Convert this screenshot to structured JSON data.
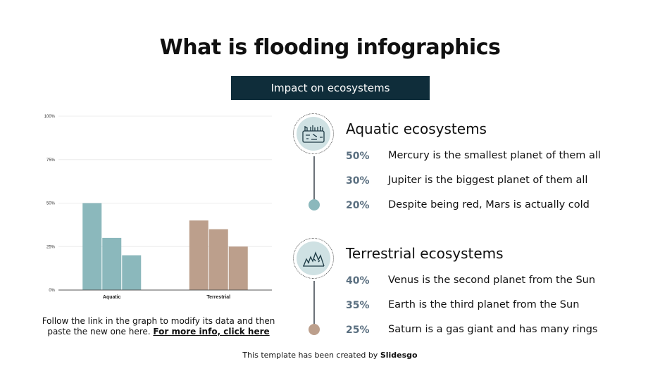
{
  "title": "What is flooding infographics",
  "subtitle": "Impact on ecosystems",
  "chart_data": {
    "type": "bar",
    "categories": [
      "Aquatic",
      "Terrestrial"
    ],
    "series": [
      {
        "values": [
          50,
          40
        ]
      },
      {
        "values": [
          30,
          35
        ]
      },
      {
        "values": [
          20,
          25
        ]
      }
    ],
    "category_colors": {
      "Aquatic": "#8bb8bc",
      "Terrestrial": "#bc9f8c"
    },
    "ylim": [
      0,
      100
    ],
    "yticks": [
      "0%",
      "25%",
      "50%",
      "75%",
      "100%"
    ],
    "grid": true
  },
  "note": {
    "text": "Follow the link in the graph to modify its data and then paste the new one here. ",
    "link": "For more info, click here"
  },
  "sections": [
    {
      "heading": "Aquatic ecosystems",
      "icon": "aquatic-landscape-icon",
      "color": "#8bb8bc",
      "items": [
        {
          "pct": "50%",
          "text": "Mercury is the smallest planet of them all"
        },
        {
          "pct": "30%",
          "text": "Jupiter is the biggest planet of them all"
        },
        {
          "pct": "20%",
          "text": "Despite being red, Mars is actually cold"
        }
      ]
    },
    {
      "heading": "Terrestrial ecosystems",
      "icon": "mountain-landscape-icon",
      "color": "#bc9f8c",
      "items": [
        {
          "pct": "40%",
          "text": "Venus is the second planet from the Sun"
        },
        {
          "pct": "35%",
          "text": "Earth is the third planet from the Sun"
        },
        {
          "pct": "25%",
          "text": "Saturn is a gas giant and has many rings"
        }
      ]
    }
  ],
  "footer": {
    "text": "This template has been created by ",
    "brand": "Slidesgo"
  }
}
